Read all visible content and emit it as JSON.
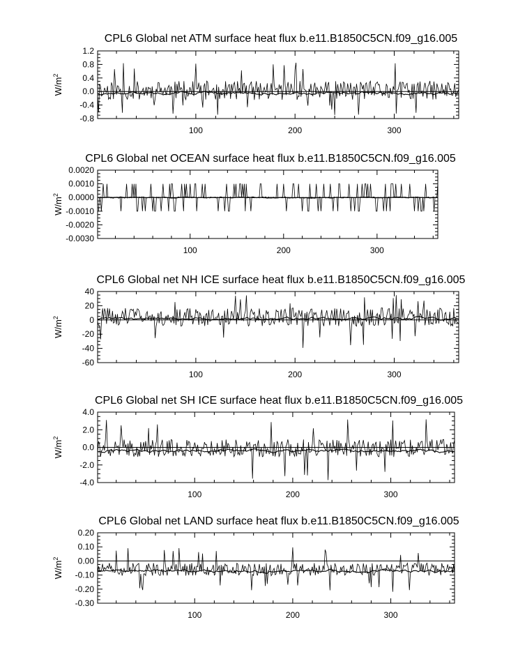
{
  "chart_data": [
    {
      "type": "line",
      "title": "CPL6 Global net ATM surface heat flux b.e11.B1850C5CN.f09_g16.005",
      "ylabel": "W/m",
      "ylabel_sup": "2",
      "xlim": [
        1,
        365
      ],
      "ylim": [
        -0.8,
        1.2
      ],
      "x_ticks": [
        100,
        200,
        300
      ],
      "x_tick_labels": [
        "100",
        "200",
        "300"
      ],
      "y_ticks": [
        -0.8,
        -0.4,
        0.0,
        0.4,
        0.8,
        1.2
      ],
      "y_tick_labels": [
        "-0.8",
        "-0.4",
        "0.0",
        "0.4",
        "0.8",
        "1.2"
      ],
      "zero_line": true,
      "grid": false,
      "series": [
        {
          "style": "daily",
          "mean": 0.03,
          "amp": 0.28,
          "spike_up": 0.95,
          "spike_down": -0.7,
          "seed": 11
        },
        {
          "style": "smooth",
          "mean": -0.05,
          "amp": 0.07,
          "seed": 12
        }
      ]
    },
    {
      "type": "line",
      "title": "CPL6 Global net OCEAN surface heat flux b.e11.B1850C5CN.f09_g16.005",
      "ylabel": "W/m",
      "ylabel_sup": "2",
      "xlim": [
        1,
        365
      ],
      "ylim": [
        -0.003,
        0.002
      ],
      "x_ticks": [
        100,
        200,
        300
      ],
      "x_tick_labels": [
        "100",
        "200",
        "300"
      ],
      "y_ticks": [
        -0.003,
        -0.002,
        -0.001,
        0.0,
        0.001,
        0.002
      ],
      "y_tick_labels": [
        "-0.0030",
        "-0.0020",
        "-0.0010",
        "0.0000",
        "0.0010",
        "0.0020"
      ],
      "zero_line": true,
      "grid": false,
      "series": [
        {
          "style": "spikes",
          "mean": 0.0,
          "amp": 0.001,
          "spike_up": 0.001,
          "spike_down": -0.001,
          "seed": 21
        },
        {
          "style": "smooth",
          "mean": 0.0,
          "amp": 5e-05,
          "seed": 22
        }
      ]
    },
    {
      "type": "line",
      "title": "CPL6 Global net NH ICE surface heat flux b.e11.B1850C5CN.f09_g16.005",
      "ylabel": "W/m",
      "ylabel_sup": "2",
      "xlim": [
        1,
        365
      ],
      "ylim": [
        -60,
        40
      ],
      "x_ticks": [
        100,
        200,
        300
      ],
      "x_tick_labels": [
        "100",
        "200",
        "300"
      ],
      "y_ticks": [
        -60,
        -40,
        -20,
        0,
        20,
        40
      ],
      "y_tick_labels": [
        "-60",
        "-40",
        "-20",
        "0",
        "20",
        "40"
      ],
      "zero_line": true,
      "grid": false,
      "series": [
        {
          "style": "daily",
          "mean": 4,
          "amp": 13,
          "spike_up": 36,
          "spike_down": -40,
          "seed": 31
        },
        {
          "style": "smooth",
          "mean": 2,
          "amp": 3,
          "seed": 32
        }
      ]
    },
    {
      "type": "line",
      "title": "CPL6 Global net SH ICE surface heat flux b.e11.B1850C5CN.f09_g16.005",
      "ylabel": "W/m",
      "ylabel_sup": "2",
      "xlim": [
        1,
        365
      ],
      "ylim": [
        -4.0,
        4.0
      ],
      "x_ticks": [
        100,
        200,
        300
      ],
      "x_tick_labels": [
        "100",
        "200",
        "300"
      ],
      "y_ticks": [
        -4.0,
        -2.0,
        0.0,
        2.0,
        4.0
      ],
      "y_tick_labels": [
        "-4.0",
        "-2.0",
        "0.0",
        "2.0",
        "4.0"
      ],
      "zero_line": true,
      "grid": false,
      "series": [
        {
          "style": "daily",
          "mean": -0.1,
          "amp": 1.0,
          "spike_up": 3.3,
          "spike_down": -3.9,
          "seed": 41
        },
        {
          "style": "smooth",
          "mean": -0.4,
          "amp": 0.25,
          "seed": 42
        }
      ]
    },
    {
      "type": "line",
      "title": "CPL6 Global net LAND surface heat flux b.e11.B1850C5CN.f09_g16.005",
      "ylabel": "W/m",
      "ylabel_sup": "2",
      "xlim": [
        1,
        365
      ],
      "ylim": [
        -0.3,
        0.2
      ],
      "x_ticks": [
        100,
        200,
        300
      ],
      "x_tick_labels": [
        "100",
        "200",
        "300"
      ],
      "y_ticks": [
        -0.3,
        -0.2,
        -0.1,
        0.0,
        0.1,
        0.2
      ],
      "y_tick_labels": [
        "-0.30",
        "-0.20",
        "-0.10",
        "0.00",
        "0.10",
        "0.20"
      ],
      "zero_line": true,
      "grid": false,
      "series": [
        {
          "style": "daily",
          "mean": -0.06,
          "amp": 0.045,
          "spike_up": 0.1,
          "spike_down": -0.22,
          "seed": 51
        },
        {
          "style": "smooth",
          "mean": -0.07,
          "amp": 0.015,
          "seed": 52
        }
      ]
    }
  ]
}
